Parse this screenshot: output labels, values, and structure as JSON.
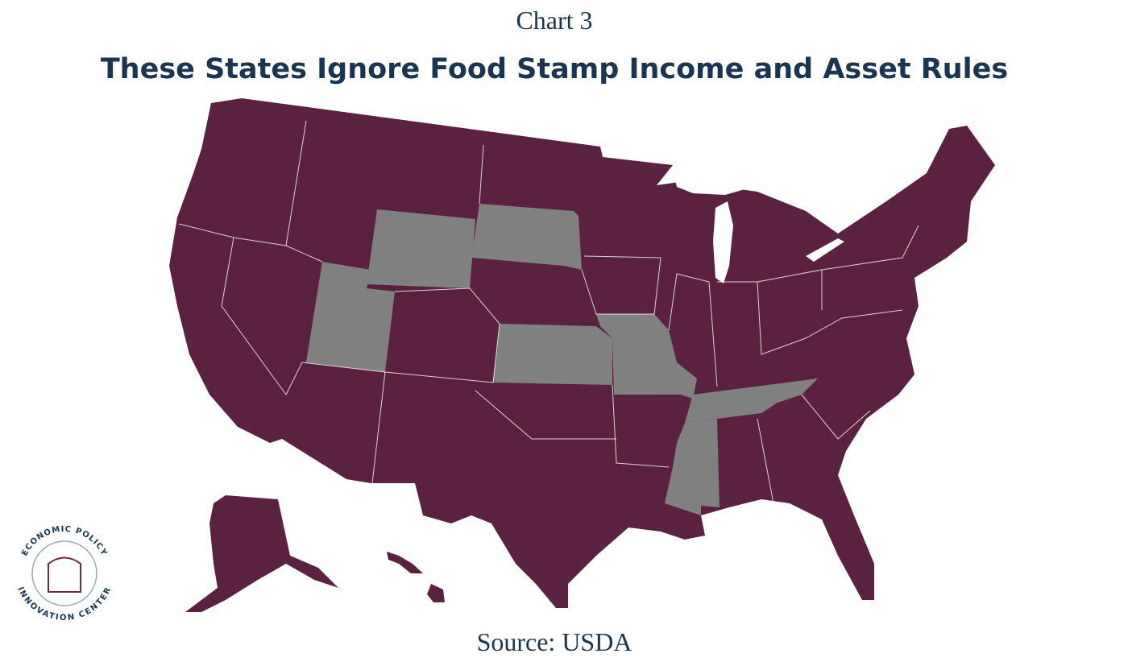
{
  "header": {
    "label": "Chart 3",
    "title": "These States Ignore Food Stamp Income and Asset Rules"
  },
  "map": {
    "base_color": "#5a2240",
    "highlight_color": "#808080"
  },
  "footer": {
    "source": "Source: USDA"
  },
  "logo": {
    "top_text": "ECONOMIC POLICY",
    "bottom_text": "INNOVATION CENTER"
  }
}
